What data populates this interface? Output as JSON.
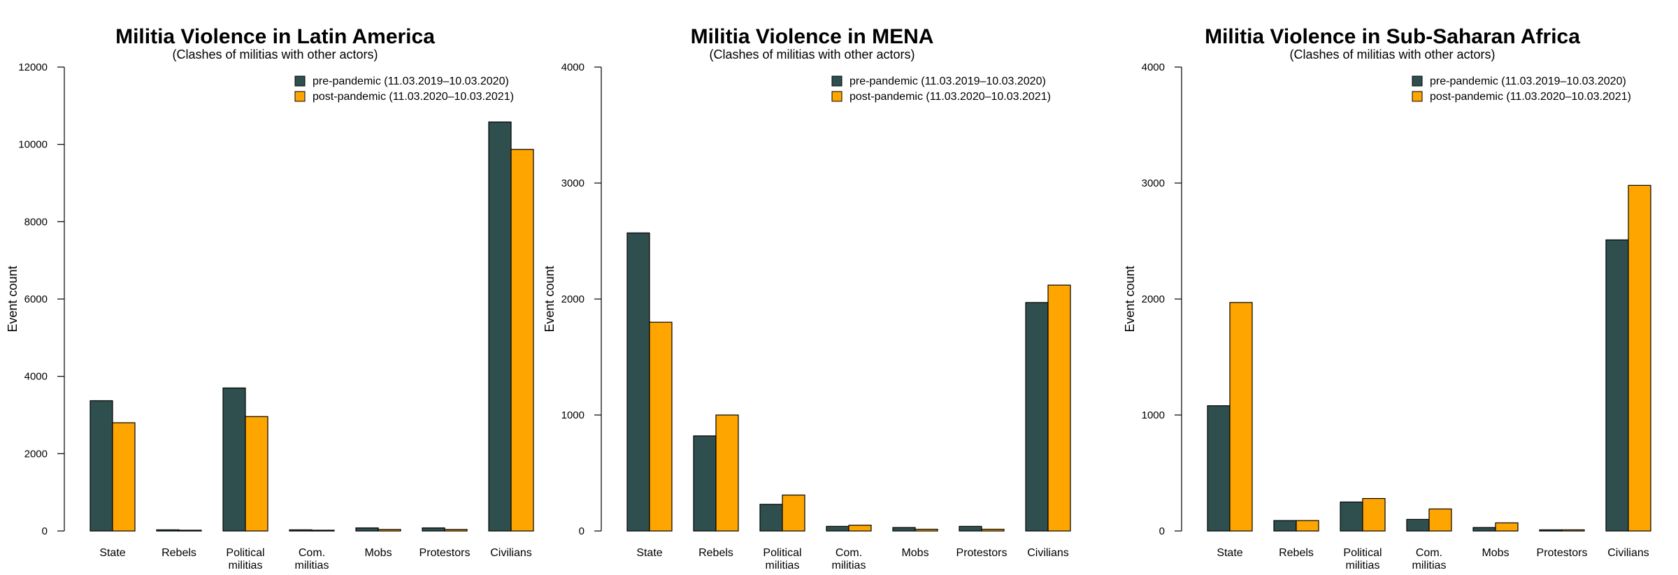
{
  "chart_data": [
    {
      "type": "bar",
      "title": "Militia Violence in Latin America",
      "subtitle": "(Clashes of militias with other actors)",
      "y_label": "Event count",
      "categories": [
        "State",
        "Rebels",
        "Political militias",
        "Com. militias",
        "Mobs",
        "Protestors",
        "Civilians"
      ],
      "series": [
        {
          "name": "pre-pandemic (11.03.2019–10.03.2020)",
          "color": "#2f4f4f",
          "values": [
            3370,
            30,
            3700,
            30,
            80,
            80,
            10580
          ]
        },
        {
          "name": "post-pandemic (11.03.2020–10.03.2021)",
          "color": "#ffa500",
          "values": [
            2800,
            20,
            2960,
            20,
            40,
            40,
            9870
          ]
        }
      ],
      "ylim": [
        0,
        12000
      ],
      "yticks": [
        0,
        2000,
        4000,
        6000,
        8000,
        10000,
        12000
      ],
      "legend": "top-right"
    },
    {
      "type": "bar",
      "title": "Militia Violence in MENA",
      "subtitle": "(Clashes of militias with other actors)",
      "y_label": "Event count",
      "categories": [
        "State",
        "Rebels",
        "Political militias",
        "Com. militias",
        "Mobs",
        "Protestors",
        "Civilians"
      ],
      "series": [
        {
          "name": "pre-pandemic (11.03.2019–10.03.2020)",
          "color": "#2f4f4f",
          "values": [
            2570,
            820,
            230,
            40,
            30,
            40,
            1970
          ]
        },
        {
          "name": "post-pandemic (11.03.2020–10.03.2021)",
          "color": "#ffa500",
          "values": [
            1800,
            1000,
            310,
            50,
            15,
            15,
            2120
          ]
        }
      ],
      "ylim": [
        0,
        4000
      ],
      "yticks": [
        0,
        1000,
        2000,
        3000,
        4000
      ],
      "legend": "top-right"
    },
    {
      "type": "bar",
      "title": "Militia Violence in Sub-Saharan Africa",
      "subtitle": "(Clashes of militias with other actors)",
      "y_label": "Event count",
      "categories": [
        "State",
        "Rebels",
        "Political militias",
        "Com. militias",
        "Mobs",
        "Protestors",
        "Civilians"
      ],
      "series": [
        {
          "name": "pre-pandemic (11.03.2019–10.03.2020)",
          "color": "#2f4f4f",
          "values": [
            1080,
            90,
            250,
            100,
            30,
            10,
            2510
          ]
        },
        {
          "name": "post-pandemic (11.03.2020–10.03.2021)",
          "color": "#ffa500",
          "values": [
            1970,
            90,
            280,
            190,
            70,
            10,
            2980
          ]
        }
      ],
      "ylim": [
        0,
        4000
      ],
      "yticks": [
        0,
        1000,
        2000,
        3000,
        4000
      ],
      "legend": "top-right"
    }
  ]
}
